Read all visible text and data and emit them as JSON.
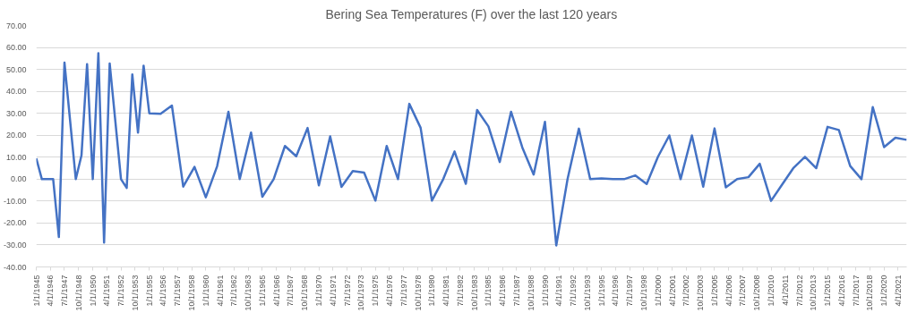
{
  "chart_data": {
    "type": "line",
    "title": "Bering Sea Temperatures (F) over the last 120 years",
    "x": [
      "1945-01-01",
      "1945-07-01",
      "1946-07-01",
      "1947-01-01",
      "1947-07-01",
      "1948-07-01",
      "1949-01-01",
      "1949-07-01",
      "1950-01-01",
      "1950-07-01",
      "1951-01-01",
      "1951-07-01",
      "1952-07-01",
      "1953-01-01",
      "1953-07-01",
      "1954-01-01",
      "1954-07-01",
      "1955-01-01",
      "1956-01-01",
      "1957-01-01",
      "1958-01-01",
      "1959-01-01",
      "1960-01-01",
      "1961-01-01",
      "1962-01-01",
      "1963-01-01",
      "1964-01-01",
      "1965-01-01",
      "1966-01-01",
      "1967-01-01",
      "1968-01-01",
      "1969-01-01",
      "1970-01-01",
      "1971-01-01",
      "1972-01-01",
      "1973-01-01",
      "1974-01-01",
      "1975-01-01",
      "1976-01-01",
      "1977-01-01",
      "1978-01-01",
      "1979-01-01",
      "1980-01-01",
      "1981-01-01",
      "1982-01-01",
      "1983-01-01",
      "1984-01-01",
      "1985-01-01",
      "1986-01-01",
      "1987-01-01",
      "1988-01-01",
      "1989-01-01",
      "1990-01-01",
      "1991-01-01",
      "1992-01-01",
      "1993-01-01",
      "1994-01-01",
      "1995-01-01",
      "1996-01-01",
      "1997-01-01",
      "1998-01-01",
      "1999-01-01",
      "2000-01-01",
      "2001-01-01",
      "2002-01-01",
      "2003-01-01",
      "2004-01-01",
      "2005-01-01",
      "2006-01-01",
      "2007-01-01",
      "2008-01-01",
      "2009-01-01",
      "2010-01-01",
      "2011-01-01",
      "2012-01-01",
      "2013-01-01",
      "2014-01-01",
      "2015-01-01",
      "2016-01-01",
      "2017-01-01",
      "2018-01-01",
      "2019-01-01",
      "2020-01-01",
      "2021-01-01",
      "2022-01-01"
    ],
    "series": [
      {
        "color": "#4472c4",
        "values": [
          9.5,
          0,
          0,
          -26.4,
          53.1,
          0,
          10.8,
          52.4,
          0,
          57.4,
          -28.9,
          52.7,
          0,
          -4,
          47.7,
          21.2,
          51.7,
          30,
          29.8,
          33.5,
          -3.4,
          5.6,
          -8.3,
          5.9,
          30.7,
          0,
          21.2,
          -8,
          0,
          15.1,
          10.4,
          23.3,
          -2.8,
          19.5,
          -3.5,
          3.7,
          3,
          -9.8,
          15.1,
          0,
          34.3,
          23.4,
          -9.8,
          0,
          12.6,
          -2.1,
          31.5,
          24,
          7.8,
          30.7,
          14.4,
          2.1,
          26.1,
          -30.2,
          0,
          23,
          0,
          0.3,
          0,
          0,
          1.7,
          -2.2,
          10.2,
          19.9,
          0,
          19.9,
          -3.4,
          23.1,
          -3.7,
          0,
          0.9,
          7,
          -9.9,
          -2.3,
          5.2,
          10.2,
          5,
          23.8,
          22.4,
          6,
          0,
          32.8,
          14.6,
          18.9,
          17.9
        ]
      }
    ],
    "xlim": [
      "1945-01-01",
      "2022-01-01"
    ],
    "xticks": [
      {
        "value": "1945-01-01",
        "label": "1/1/1945"
      },
      {
        "value": "1946-04-01",
        "label": "4/1/1946"
      },
      {
        "value": "1947-07-01",
        "label": "7/1/1947"
      },
      {
        "value": "1948-10-01",
        "label": "10/1/1948"
      },
      {
        "value": "1950-01-01",
        "label": "1/1/1950"
      },
      {
        "value": "1951-04-01",
        "label": "4/1/1951"
      },
      {
        "value": "1952-07-01",
        "label": "7/1/1952"
      },
      {
        "value": "1953-10-01",
        "label": "10/1/1953"
      },
      {
        "value": "1955-01-01",
        "label": "1/1/1955"
      },
      {
        "value": "1956-04-01",
        "label": "4/1/1956"
      },
      {
        "value": "1957-07-01",
        "label": "7/1/1957"
      },
      {
        "value": "1958-10-01",
        "label": "10/1/1958"
      },
      {
        "value": "1960-01-01",
        "label": "1/1/1960"
      },
      {
        "value": "1961-04-01",
        "label": "4/1/1961"
      },
      {
        "value": "1962-07-01",
        "label": "7/1/1962"
      },
      {
        "value": "1963-10-01",
        "label": "10/1/1963"
      },
      {
        "value": "1965-01-01",
        "label": "1/1/1965"
      },
      {
        "value": "1966-04-01",
        "label": "4/1/1966"
      },
      {
        "value": "1967-07-01",
        "label": "7/1/1967"
      },
      {
        "value": "1968-10-01",
        "label": "10/1/1968"
      },
      {
        "value": "1970-01-01",
        "label": "1/1/1970"
      },
      {
        "value": "1971-04-01",
        "label": "4/1/1971"
      },
      {
        "value": "1972-07-01",
        "label": "7/1/1972"
      },
      {
        "value": "1973-10-01",
        "label": "10/1/1973"
      },
      {
        "value": "1975-01-01",
        "label": "1/1/1975"
      },
      {
        "value": "1976-04-01",
        "label": "4/1/1976"
      },
      {
        "value": "1977-07-01",
        "label": "7/1/1977"
      },
      {
        "value": "1978-10-01",
        "label": "10/1/1978"
      },
      {
        "value": "1980-01-01",
        "label": "1/1/1980"
      },
      {
        "value": "1981-04-01",
        "label": "4/1/1981"
      },
      {
        "value": "1982-07-01",
        "label": "7/1/1982"
      },
      {
        "value": "1983-10-01",
        "label": "10/1/1983"
      },
      {
        "value": "1985-01-01",
        "label": "1/1/1985"
      },
      {
        "value": "1986-04-01",
        "label": "4/1/1986"
      },
      {
        "value": "1987-07-01",
        "label": "7/1/1987"
      },
      {
        "value": "1988-10-01",
        "label": "10/1/1988"
      },
      {
        "value": "1990-01-01",
        "label": "1/1/1990"
      },
      {
        "value": "1991-04-01",
        "label": "4/1/1991"
      },
      {
        "value": "1992-07-01",
        "label": "7/1/1992"
      },
      {
        "value": "1993-10-01",
        "label": "10/1/1993"
      },
      {
        "value": "1995-01-01",
        "label": "1/1/1995"
      },
      {
        "value": "1996-04-01",
        "label": "4/1/1996"
      },
      {
        "value": "1997-07-01",
        "label": "7/1/1997"
      },
      {
        "value": "1998-10-01",
        "label": "10/1/1998"
      },
      {
        "value": "2000-01-01",
        "label": "1/1/2000"
      },
      {
        "value": "2001-04-01",
        "label": "4/1/2001"
      },
      {
        "value": "2002-07-01",
        "label": "7/1/2002"
      },
      {
        "value": "2003-10-01",
        "label": "10/1/2003"
      },
      {
        "value": "2005-01-01",
        "label": "1/1/2005"
      },
      {
        "value": "2006-04-01",
        "label": "4/1/2006"
      },
      {
        "value": "2007-07-01",
        "label": "7/1/2007"
      },
      {
        "value": "2008-10-01",
        "label": "10/1/2008"
      },
      {
        "value": "2010-01-01",
        "label": "1/1/2010"
      },
      {
        "value": "2011-04-01",
        "label": "4/1/2011"
      },
      {
        "value": "2012-07-01",
        "label": "7/1/2012"
      },
      {
        "value": "2013-10-01",
        "label": "10/1/2013"
      },
      {
        "value": "2015-01-01",
        "label": "1/1/2015"
      },
      {
        "value": "2016-04-01",
        "label": "4/1/2016"
      },
      {
        "value": "2017-07-01",
        "label": "7/1/2017"
      },
      {
        "value": "2018-10-01",
        "label": "10/1/2018"
      },
      {
        "value": "2020-01-01",
        "label": "1/1/2020"
      },
      {
        "value": "2021-04-01",
        "label": "4/1/2021"
      }
    ],
    "ylim": [
      -40,
      70
    ],
    "yticks": [
      {
        "value": -40,
        "label": "-40.00"
      },
      {
        "value": -30,
        "label": "-30.00"
      },
      {
        "value": -20,
        "label": "-20.00"
      },
      {
        "value": -10,
        "label": "-10.00"
      },
      {
        "value": 0,
        "label": "0.00"
      },
      {
        "value": 10,
        "label": "10.00"
      },
      {
        "value": 20,
        "label": "20.00"
      },
      {
        "value": 30,
        "label": "30.00"
      },
      {
        "value": 40,
        "label": "40.00"
      },
      {
        "value": 50,
        "label": "50.00"
      },
      {
        "value": 60,
        "label": "60.00"
      },
      {
        "value": 70,
        "label": "70.00"
      }
    ],
    "grid": "y",
    "marker": "none",
    "line_style": "solid"
  }
}
